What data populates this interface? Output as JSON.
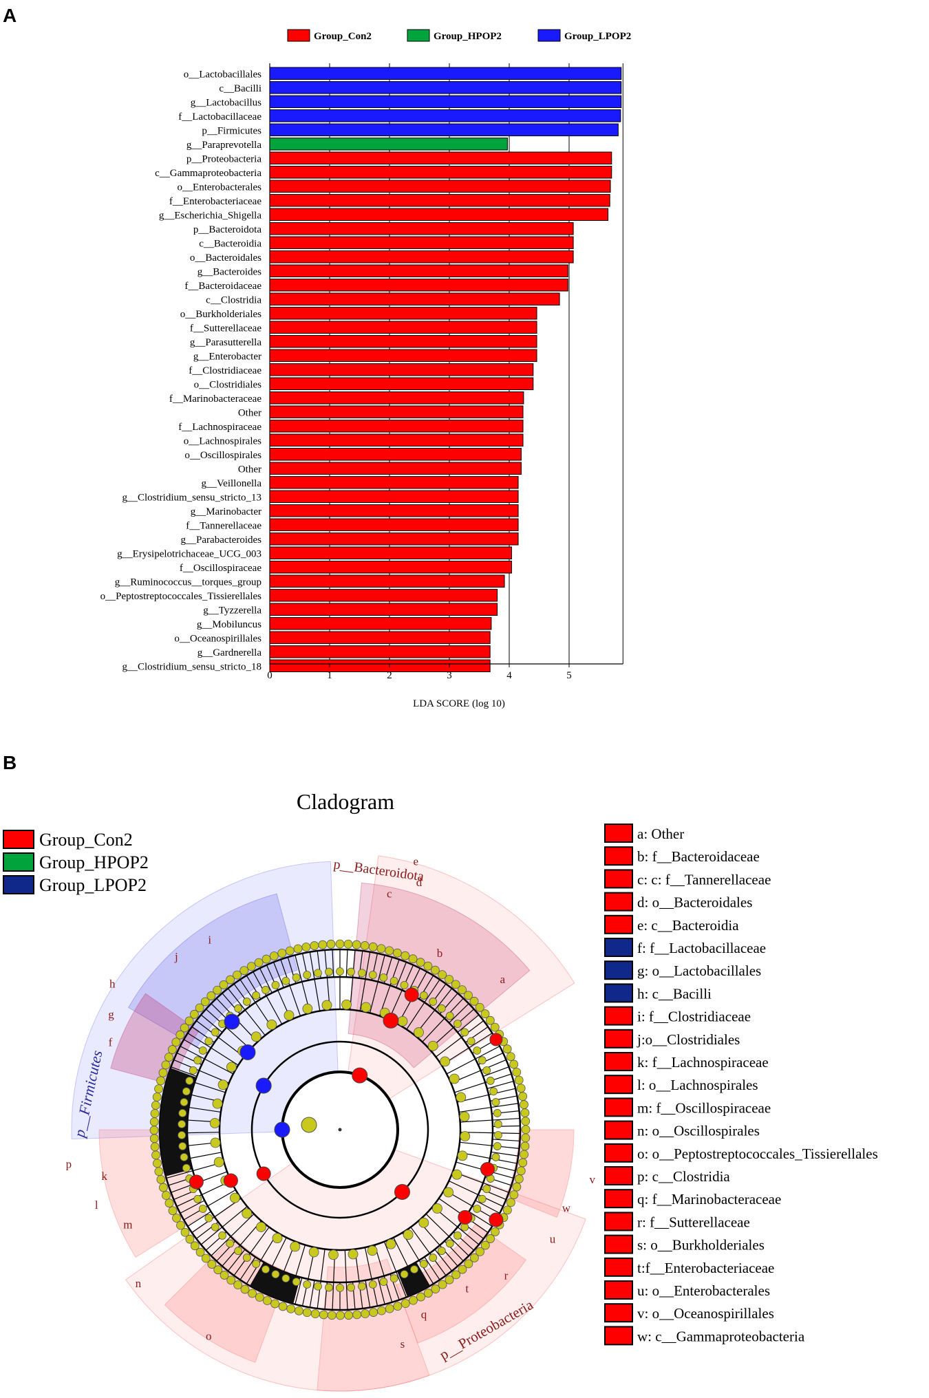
{
  "panels": {
    "a": "A",
    "b": "B"
  },
  "colors": {
    "con2": "#ff0000",
    "hpop2": "#00a33c",
    "lpop2": "#1a1aff",
    "lpop2_dark": "#10288a",
    "node": "#c8c81e",
    "bg": "#ffffff"
  },
  "chart_data": [
    {
      "type": "bar",
      "orientation": "horizontal",
      "title": "",
      "xlabel": "LDA SCORE (log 10)",
      "ylabel": "",
      "xlim": [
        0,
        5.9
      ],
      "xticks": [
        "0",
        "1",
        "2",
        "3",
        "4",
        "5"
      ],
      "legend": [
        {
          "label": "Group_Con2",
          "group": "con2"
        },
        {
          "label": "Group_HPOP2",
          "group": "hpop2"
        },
        {
          "label": "Group_LPOP2",
          "group": "lpop2"
        }
      ],
      "categories": [
        "o__Lactobacillales",
        "c__Bacilli",
        "g__Lactobacillus",
        "f__Lactobacillaceae",
        "p__Firmicutes",
        "g__Paraprevotella",
        "p__Proteobacteria",
        "c__Gammaproteobacteria",
        "o__Enterobacterales",
        "f__Enterobacteriaceae",
        "g__Escherichia_Shigella",
        "p__Bacteroidota",
        "c__Bacteroidia",
        "o__Bacteroidales",
        "g__Bacteroides",
        "f__Bacteroidaceae",
        "c__Clostridia",
        "o__Burkholderiales",
        "f__Sutterellaceae",
        "g__Parasutterella",
        "g__Enterobacter",
        "f__Clostridiaceae",
        "o__Clostridiales",
        "f__Marinobacteraceae",
        "Other",
        "f__Lachnospiraceae",
        "o__Lachnospirales",
        "o__Oscillospirales",
        "Other",
        "g__Veillonella",
        "g__Clostridium_sensu_stricto_13",
        "g__Marinobacter",
        "f__Tannerellaceae",
        "g__Parabacteroides",
        "g__Erysipelotrichaceae_UCG_003",
        "f__Oscillospiraceae",
        "g__Ruminococcus__torques_group",
        "o__Peptostreptococcales_Tissierellales",
        "g__Tyzzerella",
        "g__Mobiluncus",
        "o__Oceanospirillales",
        "g__Gardnerella",
        "g__Clostridium_sensu_stricto_18"
      ],
      "values": [
        5.87,
        5.87,
        5.87,
        5.86,
        5.82,
        3.97,
        5.71,
        5.71,
        5.69,
        5.68,
        5.65,
        5.07,
        5.07,
        5.07,
        4.98,
        4.98,
        4.84,
        4.46,
        4.46,
        4.46,
        4.46,
        4.4,
        4.4,
        4.24,
        4.23,
        4.23,
        4.23,
        4.2,
        4.2,
        4.15,
        4.15,
        4.15,
        4.15,
        4.15,
        4.04,
        4.04,
        3.92,
        3.8,
        3.8,
        3.7,
        3.68,
        3.68,
        3.68
      ],
      "groups": [
        "lpop2",
        "lpop2",
        "lpop2",
        "lpop2",
        "lpop2",
        "hpop2",
        "con2",
        "con2",
        "con2",
        "con2",
        "con2",
        "con2",
        "con2",
        "con2",
        "con2",
        "con2",
        "con2",
        "con2",
        "con2",
        "con2",
        "con2",
        "con2",
        "con2",
        "con2",
        "con2",
        "con2",
        "con2",
        "con2",
        "con2",
        "con2",
        "con2",
        "con2",
        "con2",
        "con2",
        "con2",
        "con2",
        "con2",
        "con2",
        "con2",
        "con2",
        "con2",
        "con2",
        "con2"
      ]
    }
  ],
  "cladogram": {
    "title": "Cladogram",
    "legend": [
      {
        "label": "Group_Con2",
        "group": "con2"
      },
      {
        "label": "Group_HPOP2",
        "group": "hpop2"
      },
      {
        "label": "Group_LPOP2",
        "group": "lpop2_dark"
      }
    ],
    "phylum_labels": {
      "bacteroidota": "p__Bacteroidota",
      "firmicutes": "p__Firmicutes",
      "proteobacteria": "p__Proteobacteria"
    },
    "key": [
      {
        "text": "a: Other",
        "group": "con2"
      },
      {
        "text": "b: f__Bacteroidaceae",
        "group": "con2"
      },
      {
        "text": "c: c: f__Tannerellaceae",
        "group": "con2"
      },
      {
        "text": "d: o__Bacteroidales",
        "group": "con2"
      },
      {
        "text": "e: c__Bacteroidia",
        "group": "con2"
      },
      {
        "text": "f: f__Lactobacillaceae",
        "group": "lpop2_dark"
      },
      {
        "text": "g: o__Lactobacillales",
        "group": "lpop2_dark"
      },
      {
        "text": "h: c__Bacilli",
        "group": "lpop2_dark"
      },
      {
        "text": "i: f__Clostridiaceae",
        "group": "con2"
      },
      {
        "text": "j:o__Clostridiales",
        "group": "con2"
      },
      {
        "text": "k: f__Lachnospiraceae",
        "group": "con2"
      },
      {
        "text": "l: o__Lachnospirales",
        "group": "con2"
      },
      {
        "text": "m: f__Oscillospiraceae",
        "group": "con2"
      },
      {
        "text": "n: o__Oscillospirales",
        "group": "con2"
      },
      {
        "text": "o: o__Peptostreptococcales_Tissierellales",
        "group": "con2"
      },
      {
        "text": "p: c__Clostridia",
        "group": "con2"
      },
      {
        "text": "q: f__Marinobacteraceae",
        "group": "con2"
      },
      {
        "text": "r: f__Sutterellaceae",
        "group": "con2"
      },
      {
        "text": "s: o__Burkholderiales",
        "group": "con2"
      },
      {
        "text": "t:f__Enterobacteriaceae",
        "group": "con2"
      },
      {
        "text": "u: o__Enterobacterales",
        "group": "con2"
      },
      {
        "text": "v: o__Oceanospirillales",
        "group": "con2"
      },
      {
        "text": "w: c__Gammaproteobacteria",
        "group": "con2"
      }
    ],
    "letters": [
      "a",
      "b",
      "c",
      "d",
      "e",
      "f",
      "g",
      "h",
      "i",
      "j",
      "k",
      "l",
      "m",
      "n",
      "o",
      "p",
      "q",
      "r",
      "s",
      "t",
      "u",
      "v",
      "w"
    ]
  }
}
